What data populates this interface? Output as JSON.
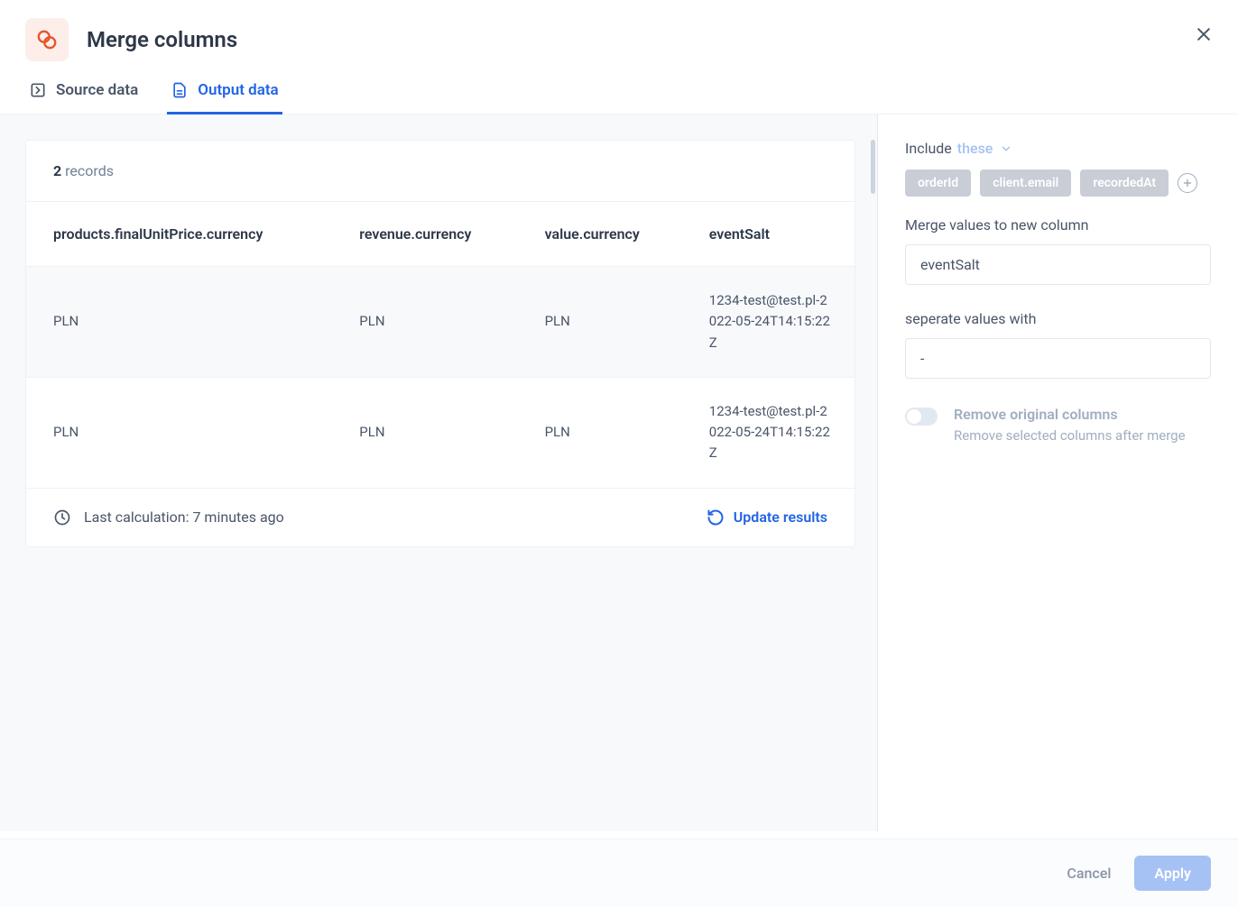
{
  "header": {
    "title": "Merge columns",
    "icon_color": "#e4572e",
    "icon_bg": "#fdeeea"
  },
  "tabs": {
    "source": "Source data",
    "output": "Output data",
    "active": "output",
    "active_color": "#2264e5",
    "inactive_color": "#4a5568"
  },
  "table": {
    "records_count": "2",
    "records_label": "records",
    "columns": [
      "products.finalUnitPrice.currency",
      "revenue.currency",
      "value.currency",
      "eventSalt"
    ],
    "rows": [
      [
        "PLN",
        "PLN",
        "PLN",
        "1234-test@test.pl-2022-05-24T14:15:22Z"
      ],
      [
        "PLN",
        "PLN",
        "PLN",
        "1234-test@test.pl-2022-05-24T14:15:22Z"
      ]
    ],
    "last_calc_label": "Last calculation: 7 minutes ago",
    "update_label": "Update results"
  },
  "sidebar": {
    "include_label": "Include",
    "include_these": "these",
    "tags": [
      "orderId",
      "client.email",
      "recordedAt"
    ],
    "tag_bg": "#c8cdd6",
    "tag_text": "#ffffff",
    "merge_label": "Merge values to new column",
    "merge_value": "eventSalt",
    "sep_label": "seperate values with",
    "sep_value": "-",
    "toggle_title": "Remove original columns",
    "toggle_sub": "Remove selected columns after merge",
    "toggle_on": false
  },
  "footer": {
    "cancel": "Cancel",
    "apply": "Apply",
    "apply_bg": "#a6c1f4"
  },
  "colors": {
    "primary": "#2264e5",
    "border": "#e2e8f0",
    "muted": "#a0aec0",
    "bg_muted": "#f7f9fb",
    "text": "#2d3748",
    "text_soft": "#4a5568"
  }
}
